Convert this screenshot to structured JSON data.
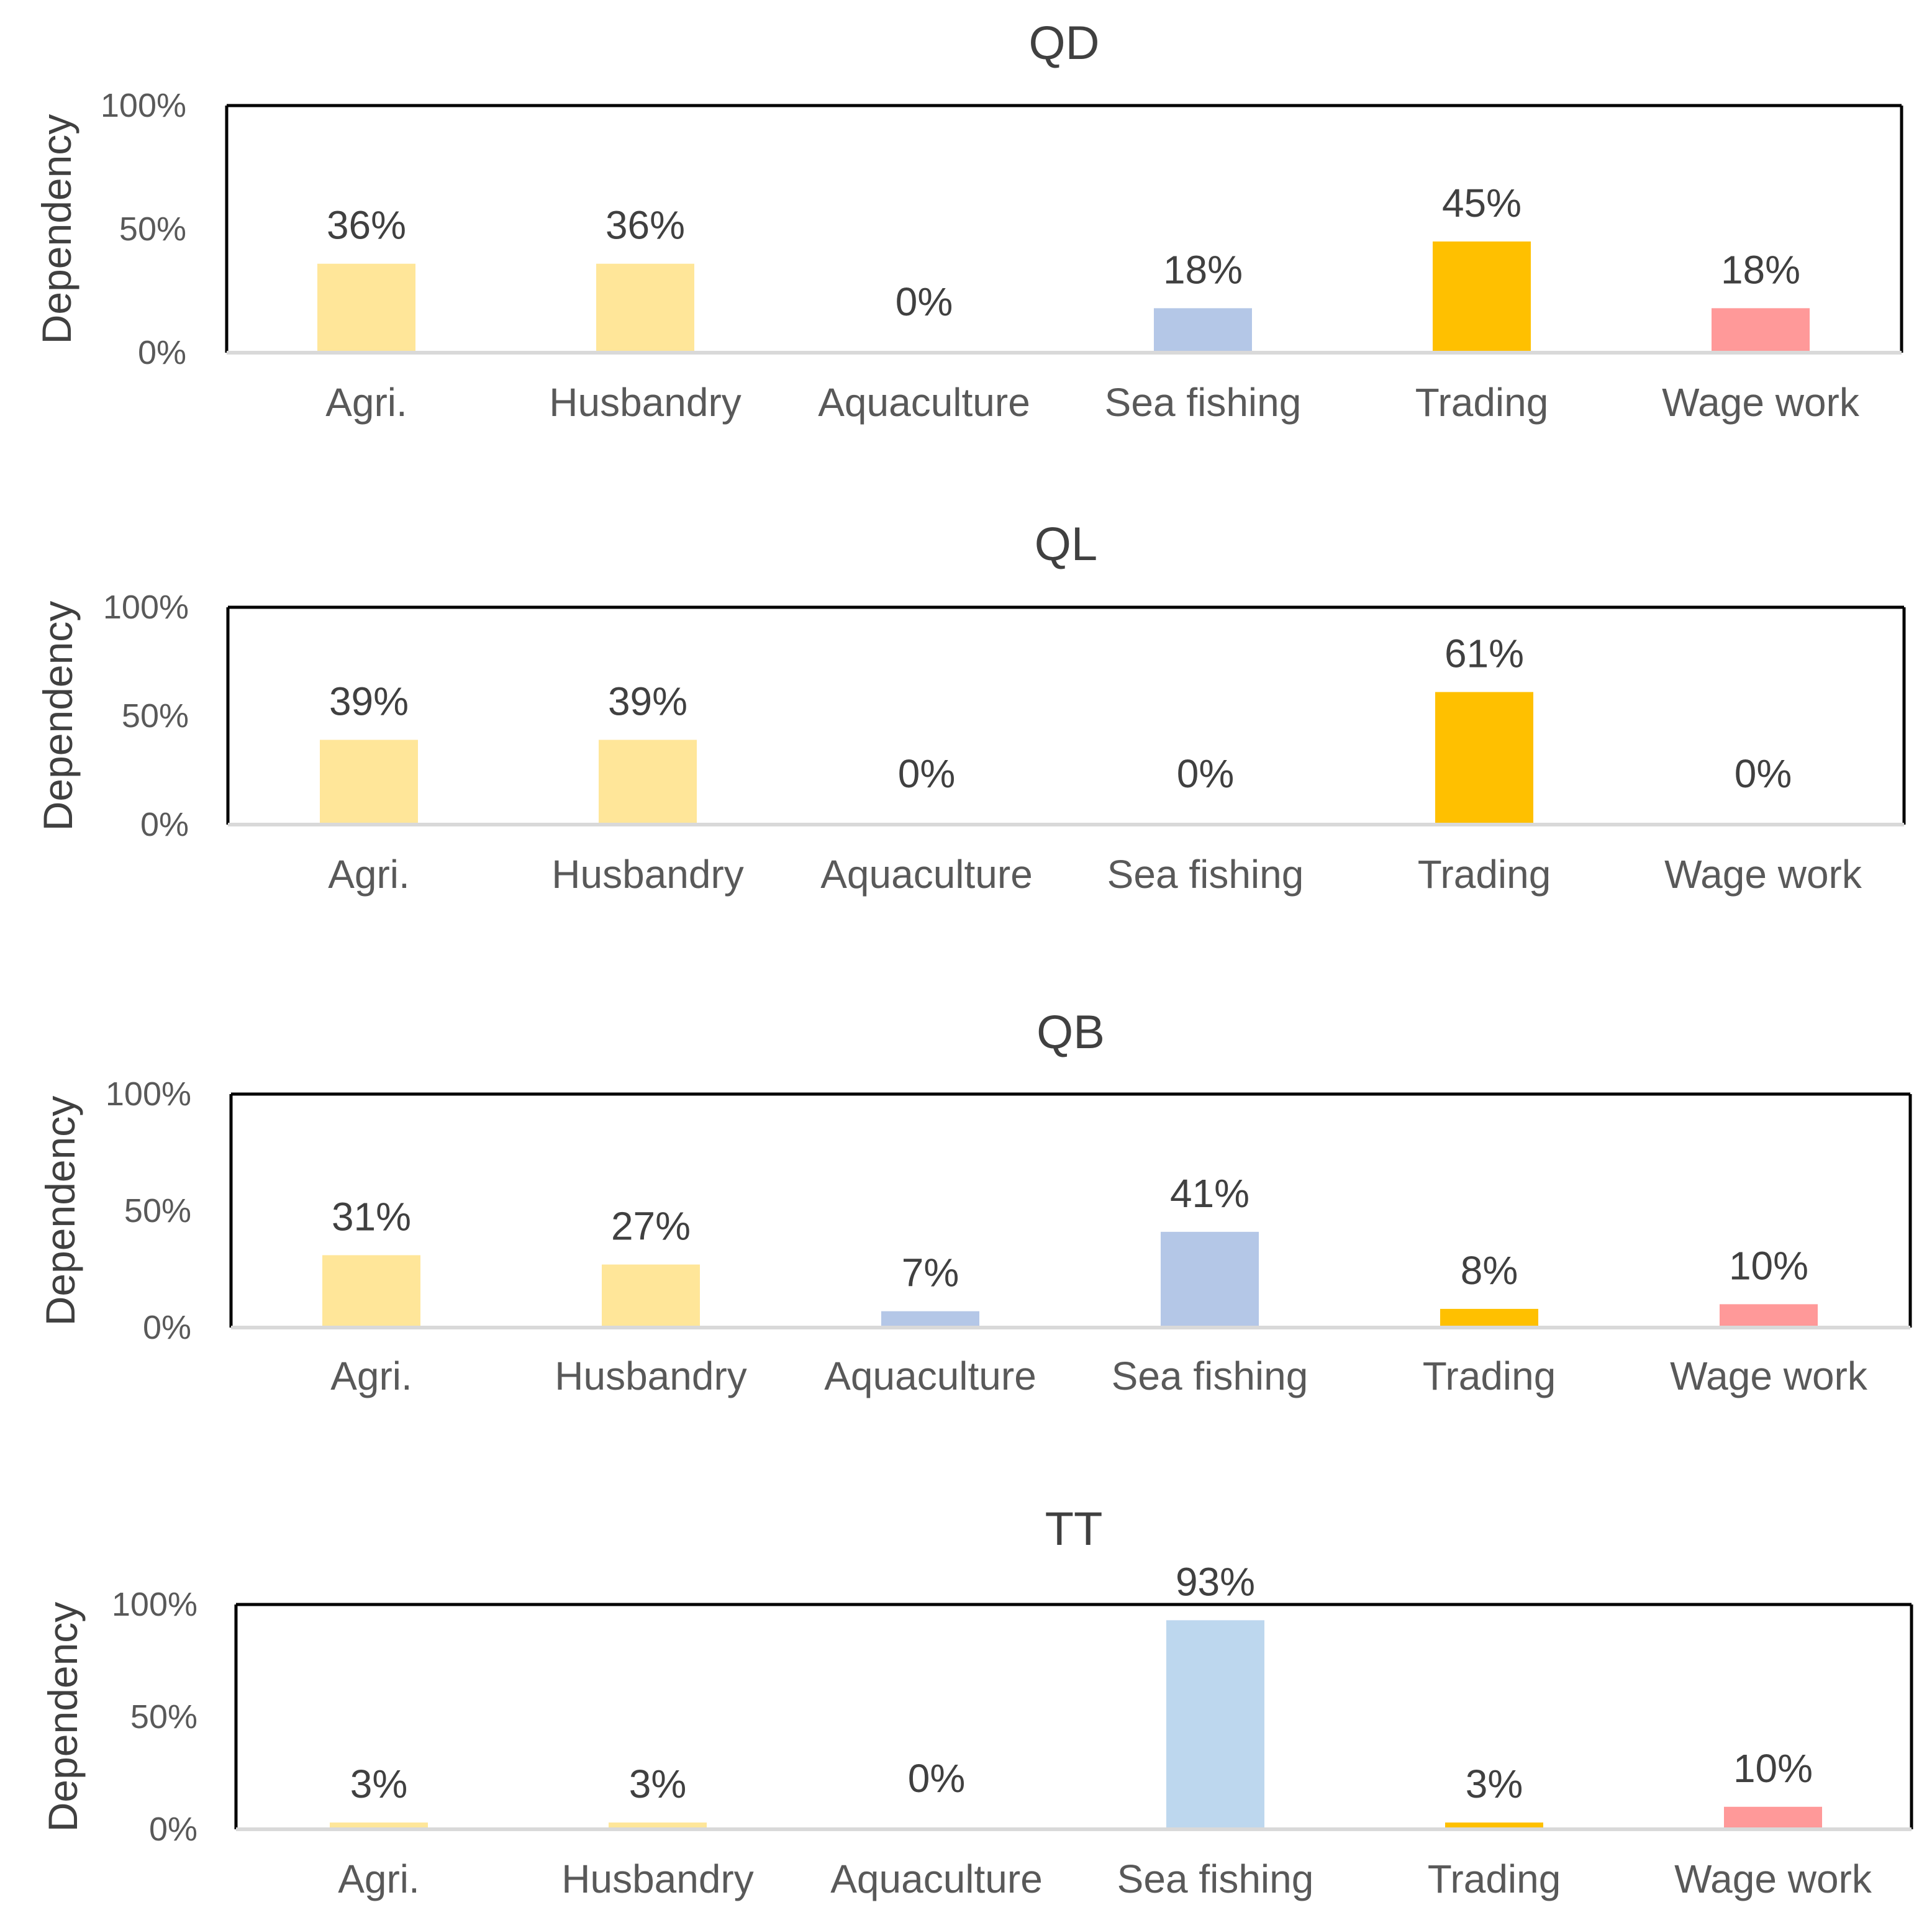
{
  "chart_data": [
    {
      "type": "bar",
      "title": "QD",
      "xlabel": "",
      "ylabel": "Dependency",
      "ylim": [
        0,
        100
      ],
      "yticks": [
        "0%",
        "50%",
        "100%"
      ],
      "categories": [
        "Agri.",
        "Husbandry",
        "Aquaculture",
        "Sea fishing",
        "Trading",
        "Wage work"
      ],
      "values": [
        36,
        36,
        0,
        18,
        45,
        18
      ],
      "data_labels": [
        "36%",
        "36%",
        "0%",
        "18%",
        "45%",
        "18%"
      ],
      "colors": [
        "#FFE699",
        "#FFE699",
        "#B4C7E7",
        "#B4C7E7",
        "#FFC000",
        "#FF9999"
      ]
    },
    {
      "type": "bar",
      "title": "QL",
      "xlabel": "",
      "ylabel": "Dependency",
      "ylim": [
        0,
        100
      ],
      "yticks": [
        "0%",
        "50%",
        "100%"
      ],
      "categories": [
        "Agri.",
        "Husbandry",
        "Aquaculture",
        "Sea fishing",
        "Trading",
        "Wage work"
      ],
      "values": [
        39,
        39,
        0,
        0,
        61,
        0
      ],
      "data_labels": [
        "39%",
        "39%",
        "0%",
        "0%",
        "61%",
        "0%"
      ],
      "colors": [
        "#FFE699",
        "#FFE699",
        "#B4C7E7",
        "#B4C7E7",
        "#FFC000",
        "#FF9999"
      ]
    },
    {
      "type": "bar",
      "title": "QB",
      "xlabel": "",
      "ylabel": "Dependency",
      "ylim": [
        0,
        100
      ],
      "yticks": [
        "0%",
        "50%",
        "100%"
      ],
      "categories": [
        "Agri.",
        "Husbandry",
        "Aquaculture",
        "Sea fishing",
        "Trading",
        "Wage work"
      ],
      "values": [
        31,
        27,
        7,
        41,
        8,
        10
      ],
      "data_labels": [
        "31%",
        "27%",
        "7%",
        "41%",
        "8%",
        "10%"
      ],
      "colors": [
        "#FFE699",
        "#FFE699",
        "#B4C7E7",
        "#B4C7E7",
        "#FFC000",
        "#FF9999"
      ]
    },
    {
      "type": "bar",
      "title": "TT",
      "xlabel": "",
      "ylabel": "Dependency",
      "ylim": [
        0,
        100
      ],
      "yticks": [
        "0%",
        "50%",
        "100%"
      ],
      "categories": [
        "Agri.",
        "Husbandry",
        "Aquaculture",
        "Sea fishing",
        "Trading",
        "Wage work"
      ],
      "values": [
        3,
        3,
        0,
        93,
        3,
        10
      ],
      "data_labels": [
        "3%",
        "3%",
        "0%",
        "93%",
        "3%",
        "10%"
      ],
      "colors": [
        "#FFE699",
        "#FFE699",
        "#B4C7E7",
        "#BDD7EE",
        "#FFC000",
        "#FF9999"
      ]
    }
  ]
}
